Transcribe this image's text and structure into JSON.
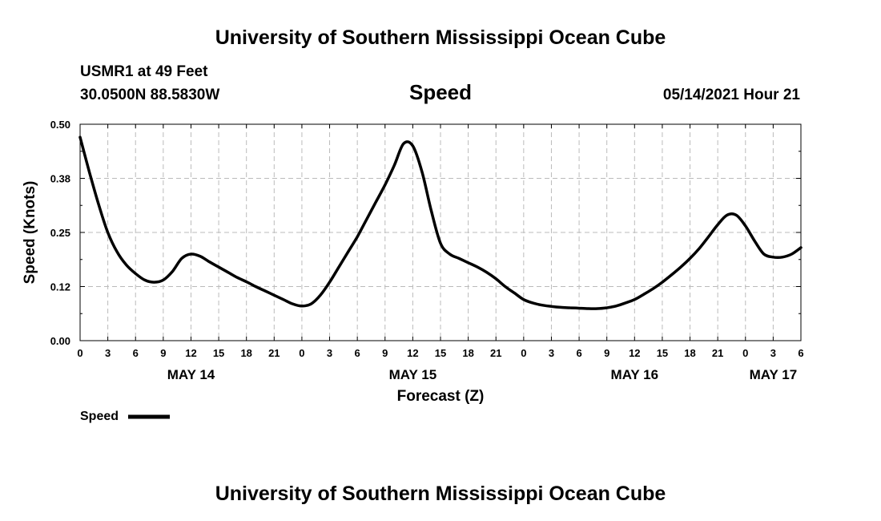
{
  "header": {
    "title": "University of Southern Mississippi Ocean Cube",
    "station": "USMR1 at 49 Feet",
    "location": "30.0500N  88.5830W",
    "variable": "Speed",
    "timestamp": "05/14/2021 Hour 21"
  },
  "footer": {
    "title": "University of Southern Mississippi Ocean Cube"
  },
  "colors": {
    "line": "#000000",
    "grid": "#bbbbbb",
    "background": "#ffffff"
  },
  "chart_data": {
    "type": "line",
    "xlabel": "Forecast (Z)",
    "ylabel": "Speed (Knots)",
    "xlim": [
      0,
      78
    ],
    "ylim": [
      0,
      0.5
    ],
    "y_ticks": [
      0.0,
      0.125,
      0.25,
      0.375,
      0.5
    ],
    "y_tick_labels": [
      "0.00",
      "0.12",
      "0.25",
      "0.38",
      "0.50"
    ],
    "x_ticks": [
      0,
      3,
      6,
      9,
      12,
      15,
      18,
      21,
      24,
      27,
      30,
      33,
      36,
      39,
      42,
      45,
      48,
      51,
      54,
      57,
      60,
      63,
      66,
      69,
      72,
      75,
      78
    ],
    "x_tick_labels": [
      "0",
      "3",
      "6",
      "9",
      "12",
      "15",
      "18",
      "21",
      "0",
      "3",
      "6",
      "9",
      "12",
      "15",
      "18",
      "21",
      "0",
      "3",
      "6",
      "9",
      "12",
      "15",
      "18",
      "21",
      "0",
      "3",
      "6"
    ],
    "day_labels": [
      {
        "text": "MAY 14",
        "hour": 12
      },
      {
        "text": "MAY 15",
        "hour": 36
      },
      {
        "text": "MAY 16",
        "hour": 60
      },
      {
        "text": "MAY 17",
        "hour": 75
      }
    ],
    "grid": true,
    "legend": {
      "position": "bottom-left",
      "entries": [
        "Speed"
      ]
    },
    "series": [
      {
        "name": "Speed",
        "x": [
          0,
          1,
          2,
          3,
          4,
          5,
          6,
          7,
          8,
          9,
          10,
          11,
          12,
          13,
          14,
          15,
          16,
          17,
          18,
          19,
          20,
          21,
          22,
          23,
          24,
          25,
          26,
          27,
          28,
          29,
          30,
          31,
          32,
          33,
          34,
          35,
          36,
          37,
          38,
          39,
          40,
          41,
          42,
          43,
          44,
          45,
          46,
          47,
          48,
          49,
          50,
          51,
          52,
          53,
          54,
          55,
          56,
          57,
          58,
          59,
          60,
          61,
          62,
          63,
          64,
          65,
          66,
          67,
          68,
          69,
          70,
          71,
          72,
          73,
          74,
          75,
          76,
          77,
          78
        ],
        "y": [
          0.47,
          0.39,
          0.315,
          0.25,
          0.205,
          0.175,
          0.155,
          0.14,
          0.135,
          0.14,
          0.16,
          0.19,
          0.2,
          0.195,
          0.182,
          0.17,
          0.158,
          0.146,
          0.136,
          0.125,
          0.115,
          0.105,
          0.095,
          0.085,
          0.08,
          0.085,
          0.105,
          0.135,
          0.17,
          0.205,
          0.24,
          0.28,
          0.32,
          0.36,
          0.405,
          0.455,
          0.45,
          0.39,
          0.3,
          0.225,
          0.2,
          0.19,
          0.18,
          0.17,
          0.158,
          0.143,
          0.125,
          0.11,
          0.095,
          0.087,
          0.082,
          0.079,
          0.077,
          0.076,
          0.075,
          0.074,
          0.074,
          0.076,
          0.08,
          0.087,
          0.095,
          0.107,
          0.12,
          0.135,
          0.152,
          0.17,
          0.19,
          0.213,
          0.24,
          0.268,
          0.29,
          0.29,
          0.265,
          0.23,
          0.2,
          0.193,
          0.193,
          0.2,
          0.215
        ]
      }
    ]
  }
}
